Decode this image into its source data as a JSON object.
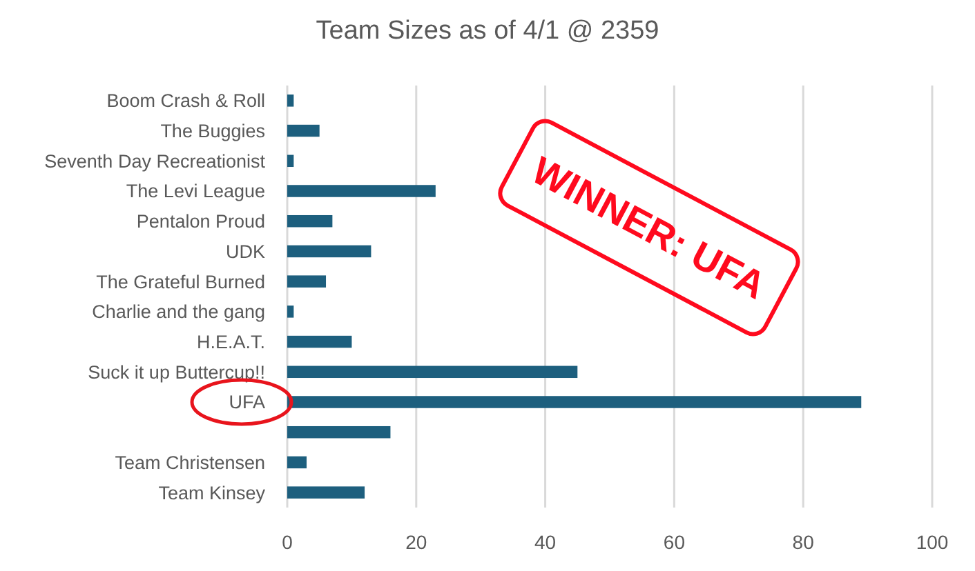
{
  "chart_data": {
    "type": "bar",
    "orientation": "horizontal",
    "title": "Team Sizes as of 4/1 @ 2359",
    "categories": [
      "Boom Crash & Roll",
      "The Buggies",
      "Seventh Day Recreationist",
      "The Levi League",
      "Pentalon Proud",
      "UDK",
      "The Grateful Burned",
      "Charlie and the gang",
      "H.E.A.T.",
      "Suck it up Buttercup!!",
      "UFA",
      null,
      "Team Christensen",
      "Team Kinsey"
    ],
    "values": [
      1,
      5,
      1,
      23,
      7,
      13,
      6,
      1,
      10,
      45,
      89,
      16,
      3,
      12
    ],
    "color": "#1d5f7e",
    "xlim": [
      0,
      100
    ],
    "xticks": [
      0,
      20,
      40,
      60,
      80,
      100
    ],
    "grid": "x",
    "annotations": [
      "WINNER: UFA"
    ]
  }
}
